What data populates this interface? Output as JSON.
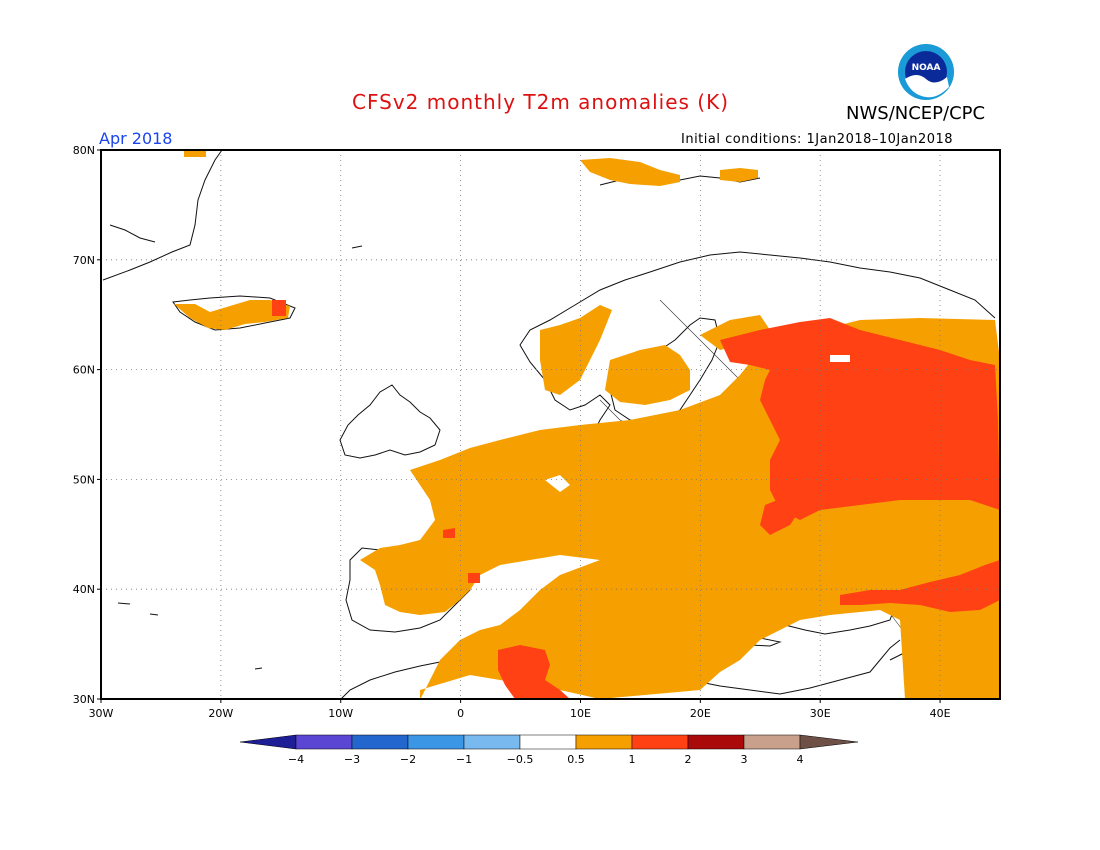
{
  "header": {
    "title": "CFSv2 monthly T2m anomalies (K)",
    "org": "NWS/NCEP/CPC",
    "month": "Apr 2018",
    "initial_conditions": "Initial conditions: 1Jan2018–10Jan2018",
    "logo_text": "NOAA"
  },
  "axes": {
    "lat_labels": [
      "80N",
      "70N",
      "60N",
      "50N",
      "40N",
      "30N"
    ],
    "lat_values": [
      80,
      70,
      60,
      50,
      40,
      30
    ],
    "lon_labels": [
      "30W",
      "20W",
      "10W",
      "0",
      "10E",
      "20E",
      "30E",
      "40E"
    ],
    "lon_values": [
      -30,
      -20,
      -10,
      0,
      10,
      20,
      30,
      40
    ],
    "lon_range": [
      -30,
      45
    ],
    "lat_range": [
      30,
      80
    ],
    "grid": "dotted"
  },
  "colorbar": {
    "labels": [
      "−4",
      "−3",
      "−2",
      "−1",
      "−0.5",
      "0.5",
      "1",
      "2",
      "3",
      "4"
    ],
    "colors": [
      "#1e1e96",
      "#5a46d2",
      "#2366cd",
      "#3c96e6",
      "#78b9f0",
      "#ffffff",
      "#f5a000",
      "#ff4114",
      "#aa0a0a",
      "#c8a08c",
      "#6e5046"
    ]
  },
  "colors": {
    "warm_anomaly": "#f5a000",
    "strong_warm_anomaly": "#ff4114"
  }
}
